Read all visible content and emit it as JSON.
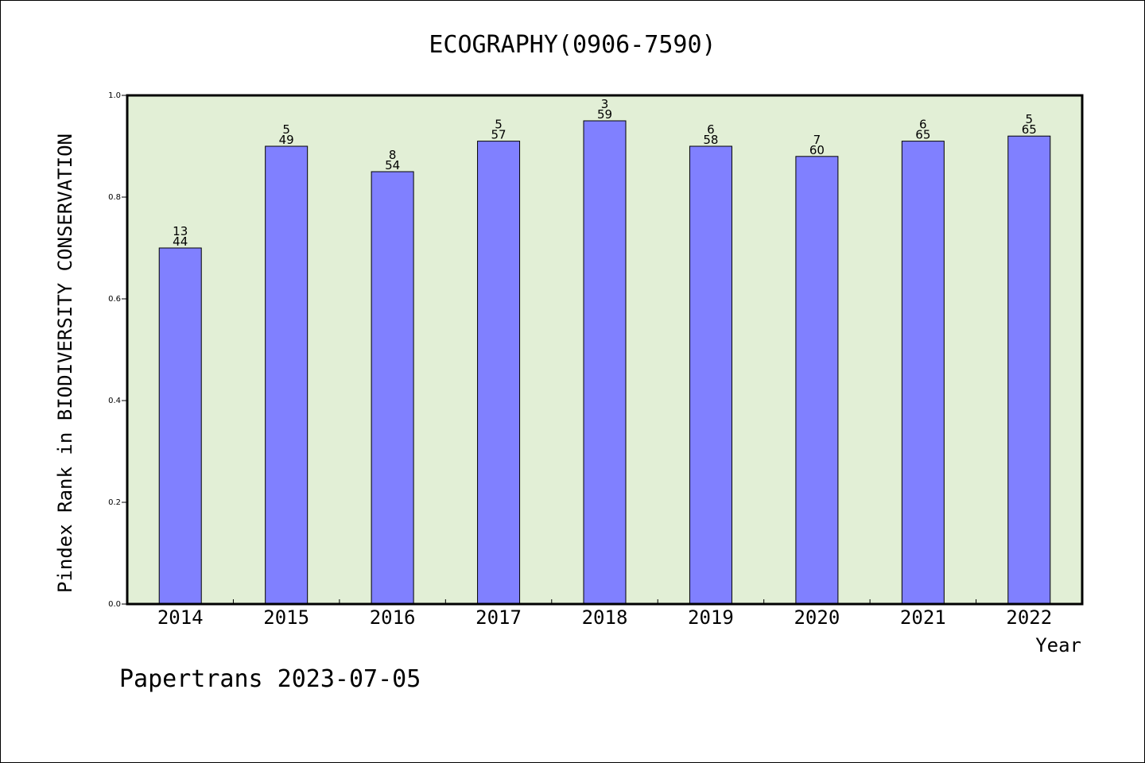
{
  "chart_data": {
    "type": "bar",
    "title": "ECOGRAPHY(0906-7590)",
    "xlabel": "Year",
    "ylabel": "Pindex Rank in BIODIVERSITY CONSERVATION",
    "categories": [
      "2014",
      "2015",
      "2016",
      "2017",
      "2018",
      "2019",
      "2020",
      "2021",
      "2022"
    ],
    "values": [
      0.7,
      0.9,
      0.85,
      0.91,
      0.95,
      0.9,
      0.88,
      0.91,
      0.92
    ],
    "rank_labels": [
      "13",
      "5",
      "8",
      "5",
      "3",
      "6",
      "7",
      "6",
      "5"
    ],
    "count_labels": [
      "44",
      "49",
      "54",
      "57",
      "59",
      "58",
      "60",
      "65",
      "65"
    ],
    "ylim": [
      0,
      1.0
    ],
    "yticks": [
      "0.0",
      "0.2",
      "0.4",
      "0.6",
      "0.8",
      "1.0"
    ],
    "grid": false,
    "colors": {
      "plot_background": "#e2efd6",
      "bar_fill": "#8080ff",
      "bar_stroke": "#000000"
    }
  },
  "footer": "Papertrans 2023-07-05"
}
